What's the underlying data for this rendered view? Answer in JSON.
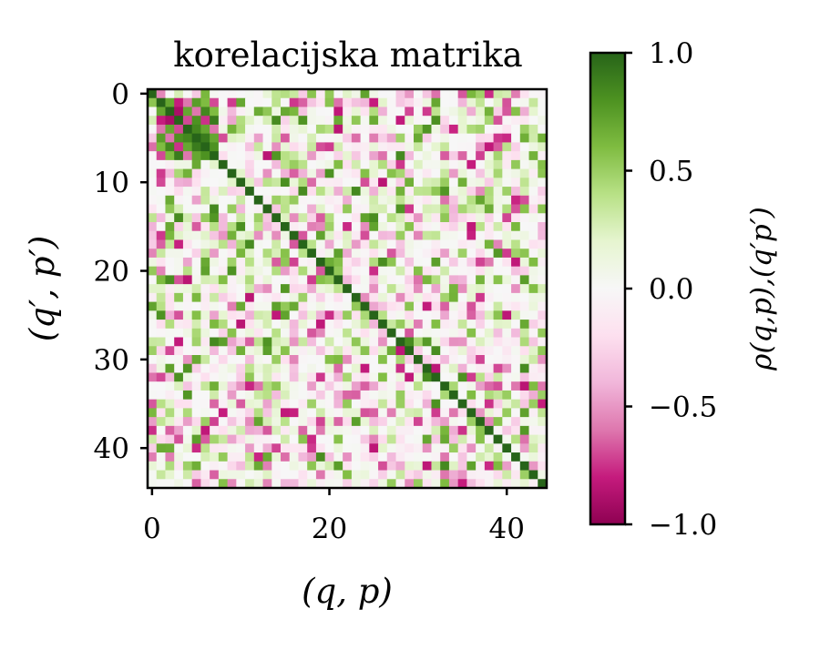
{
  "chart_data": {
    "type": "heatmap",
    "title": "korelacijska matrika",
    "xlabel": "(q, p)",
    "ylabel": "(q′, p′)",
    "colorbar_label": "ρ(q,p),(q′p′)",
    "n": 45,
    "xlim": [
      -0.5,
      44.5
    ],
    "ylim": [
      44.5,
      -0.5
    ],
    "x_ticks": [
      0,
      20,
      40
    ],
    "y_ticks": [
      0,
      10,
      20,
      30,
      40
    ],
    "colorbar_range": [
      -1.0,
      1.0
    ],
    "colorbar_ticks": [
      "1.0",
      "0.5",
      "0.0",
      "−0.5",
      "−1.0"
    ],
    "colormap": "PiYG",
    "colors": {
      "neg": "#8e0152",
      "mid": "#f7f7f7",
      "pos": "#276419"
    },
    "diagonal_value": 1.0,
    "strong_block": {
      "rows": [
        1,
        7
      ],
      "cols": [
        1,
        7
      ],
      "values": [
        [
          1.0,
          0.7,
          -0.8,
          -0.6,
          0.75,
          0.6,
          -0.7
        ],
        [
          0.7,
          1.0,
          -0.9,
          0.7,
          -0.6,
          0.85,
          0.6
        ],
        [
          -0.8,
          -0.9,
          1.0,
          -0.7,
          0.8,
          -0.75,
          0.9
        ],
        [
          -0.6,
          0.7,
          -0.7,
          1.0,
          0.85,
          0.7,
          -0.6
        ],
        [
          0.75,
          -0.6,
          0.8,
          0.85,
          1.0,
          0.9,
          0.7
        ],
        [
          0.6,
          0.85,
          -0.75,
          0.7,
          0.9,
          1.0,
          0.8
        ],
        [
          -0.7,
          0.6,
          0.9,
          -0.6,
          0.7,
          0.8,
          1.0
        ]
      ]
    }
  }
}
